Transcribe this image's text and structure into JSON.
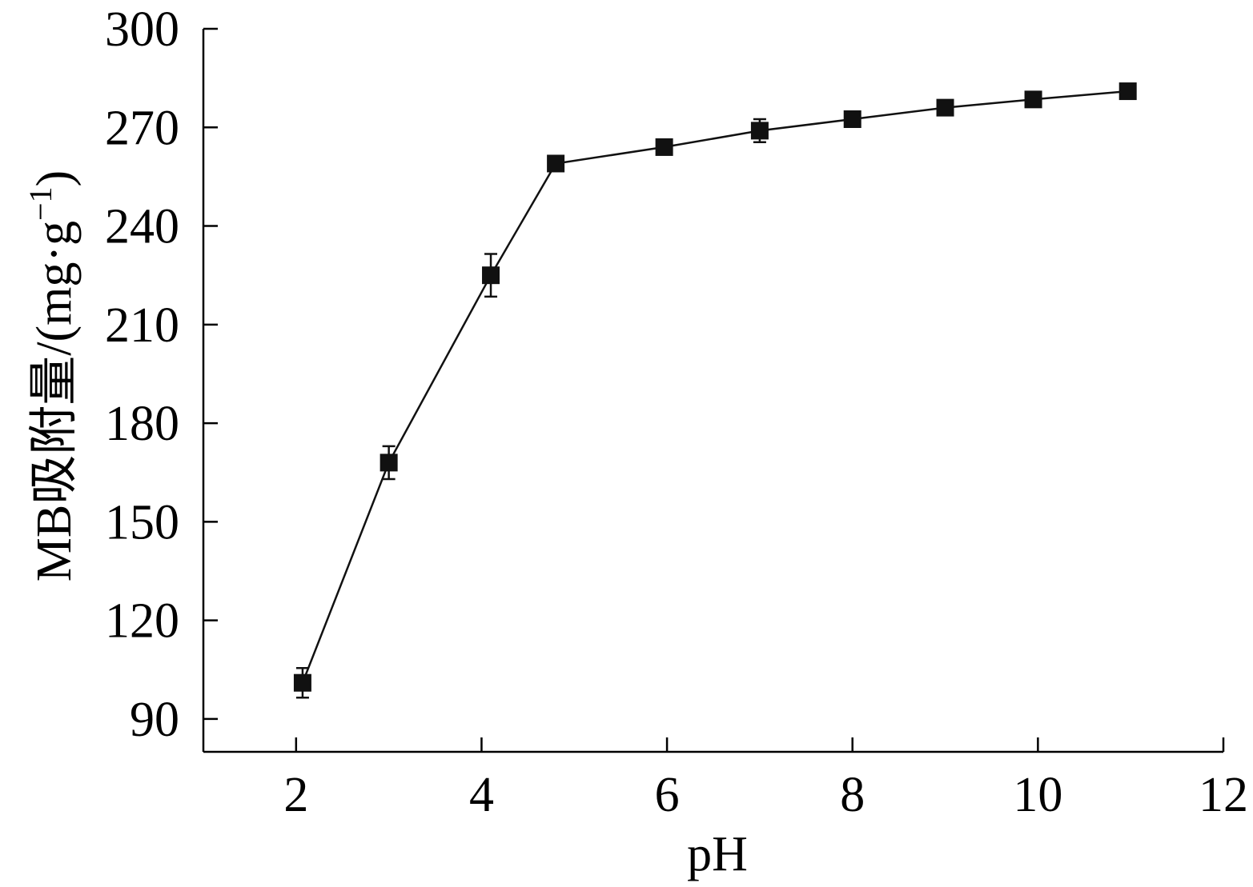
{
  "chart_data": {
    "type": "line",
    "xlabel": "pH",
    "ylabel_main": "MB吸附量/(mg·g",
    "ylabel_sup": "−1",
    "ylabel_close": ")",
    "xlim": [
      1,
      12
    ],
    "ylim": [
      80,
      300
    ],
    "xticks": [
      2,
      4,
      6,
      8,
      10,
      12
    ],
    "yticks": [
      90,
      120,
      150,
      180,
      210,
      240,
      270,
      300
    ],
    "grid": false,
    "marker": "square",
    "color": "#111111",
    "series": [
      {
        "x": [
          2.07,
          3.0,
          4.1,
          4.8,
          5.97,
          7.0,
          8.0,
          9.0,
          9.95,
          10.97
        ],
        "y": [
          101,
          168,
          225,
          259,
          264,
          269,
          272.5,
          276,
          278.5,
          281
        ],
        "err": [
          4.5,
          5.0,
          6.5,
          1.5,
          1.5,
          3.5,
          1.5,
          1.5,
          1.5,
          1.5
        ]
      }
    ]
  }
}
